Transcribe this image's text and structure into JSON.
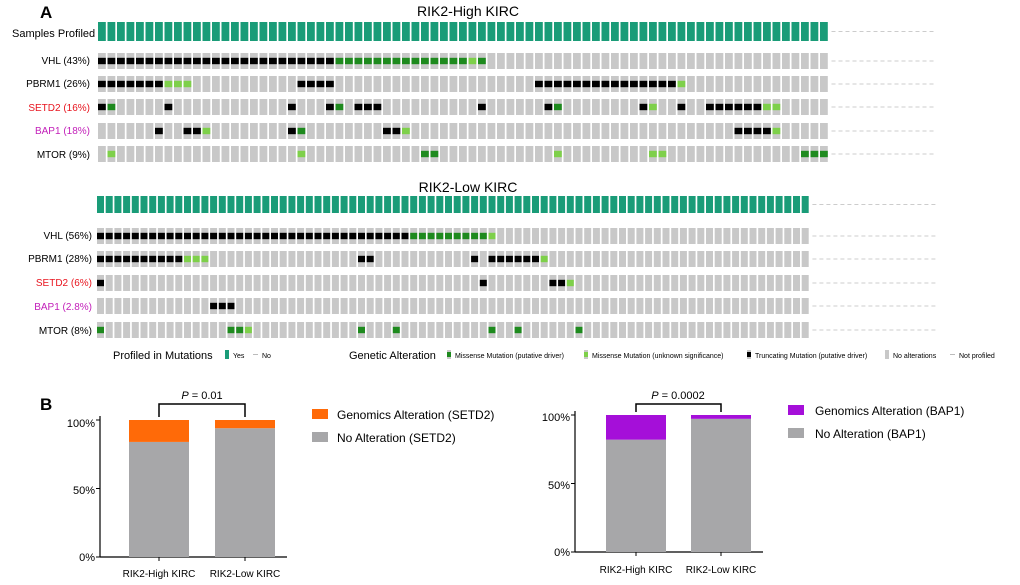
{
  "panel_a_label": "A",
  "panel_b_label": "B",
  "colors": {
    "profiled": "#1a9c78",
    "missense_driver": "#1e8a1e",
    "missense_unknown": "#7ed04a",
    "truncating": "#000000",
    "no_alteration": "#c8c8c8",
    "not_profiled": "#bbbbbb",
    "setd2_label": "#e8141e",
    "bap1_label": "#c21fb9",
    "setd2_alteration": "#ff6a08",
    "bap1_alteration": "#a50fd9",
    "no_alteration_bar": "#a7a7a9"
  },
  "oncoprint": {
    "high": {
      "title": "RIK2-High KIRC",
      "samples_profiled_label": "Samples Profiled",
      "n_samples": 77,
      "genes": [
        {
          "label": "VHL (43%)",
          "color": "#000000",
          "runs": [
            [
              0,
              24,
              "T"
            ],
            [
              25,
              38,
              "D"
            ],
            [
              39,
              39,
              "U"
            ],
            [
              40,
              40,
              "D"
            ]
          ]
        },
        {
          "label": "PBRM1 (26%)",
          "color": "#000000",
          "runs": [
            [
              0,
              6,
              "T"
            ],
            [
              7,
              9,
              "U"
            ],
            [
              21,
              24,
              "T"
            ],
            [
              46,
              60,
              "T"
            ],
            [
              61,
              61,
              "U"
            ]
          ]
        },
        {
          "label": "SETD2 (16%)",
          "color": "#e8141e",
          "runs": [
            [
              0,
              0,
              "T"
            ],
            [
              1,
              1,
              "D"
            ],
            [
              7,
              7,
              "T"
            ],
            [
              20,
              20,
              "T"
            ],
            [
              24,
              24,
              "T"
            ],
            [
              25,
              25,
              "D"
            ],
            [
              27,
              29,
              "T"
            ],
            [
              40,
              40,
              "T"
            ],
            [
              47,
              47,
              "T"
            ],
            [
              48,
              48,
              "D"
            ],
            [
              57,
              57,
              "T"
            ],
            [
              58,
              58,
              "U"
            ],
            [
              61,
              61,
              "T"
            ],
            [
              64,
              69,
              "T"
            ],
            [
              70,
              71,
              "U"
            ]
          ]
        },
        {
          "label": "BAP1 (18%)",
          "color": "#c21fb9",
          "runs": [
            [
              6,
              6,
              "T"
            ],
            [
              9,
              10,
              "T"
            ],
            [
              11,
              11,
              "U"
            ],
            [
              20,
              20,
              "T"
            ],
            [
              21,
              21,
              "D"
            ],
            [
              30,
              31,
              "T"
            ],
            [
              32,
              32,
              "U"
            ],
            [
              67,
              70,
              "T"
            ],
            [
              71,
              71,
              "U"
            ]
          ]
        },
        {
          "label": "MTOR (9%)",
          "color": "#000000",
          "runs": [
            [
              1,
              1,
              "U"
            ],
            [
              21,
              21,
              "U"
            ],
            [
              34,
              35,
              "D"
            ],
            [
              48,
              48,
              "U"
            ],
            [
              58,
              59,
              "U"
            ],
            [
              74,
              76,
              "D"
            ]
          ]
        }
      ]
    },
    "low": {
      "title": "RIK2-Low KIRC",
      "n_samples": 82,
      "genes": [
        {
          "label": "VHL (56%)",
          "color": "#000000",
          "runs": [
            [
              0,
              35,
              "T"
            ],
            [
              36,
              44,
              "D"
            ],
            [
              45,
              45,
              "U"
            ]
          ]
        },
        {
          "label": "PBRM1 (28%)",
          "color": "#000000",
          "runs": [
            [
              0,
              9,
              "T"
            ],
            [
              10,
              12,
              "U"
            ],
            [
              30,
              31,
              "T"
            ],
            [
              43,
              43,
              "T"
            ],
            [
              45,
              50,
              "T"
            ],
            [
              51,
              51,
              "U"
            ]
          ]
        },
        {
          "label": "SETD2 (6%)",
          "color": "#e8141e",
          "runs": [
            [
              0,
              0,
              "T"
            ],
            [
              44,
              44,
              "T"
            ],
            [
              52,
              53,
              "T"
            ],
            [
              54,
              54,
              "U"
            ]
          ]
        },
        {
          "label": "BAP1 (2.8%)",
          "color": "#c21fb9",
          "runs": [
            [
              13,
              15,
              "T"
            ]
          ]
        },
        {
          "label": "MTOR (8%)",
          "color": "#000000",
          "runs": [
            [
              0,
              0,
              "D"
            ],
            [
              15,
              16,
              "D"
            ],
            [
              17,
              17,
              "U"
            ],
            [
              30,
              30,
              "D"
            ],
            [
              34,
              34,
              "D"
            ],
            [
              45,
              45,
              "D"
            ],
            [
              48,
              48,
              "D"
            ],
            [
              55,
              55,
              "D"
            ]
          ]
        }
      ]
    },
    "legend": {
      "profiled_title": "Profiled in Mutations",
      "yes": "Yes",
      "no": "No",
      "genetic_title": "Genetic Alteration",
      "items": [
        {
          "key": "D",
          "label": "Missense Mutation (putative driver)"
        },
        {
          "key": "U",
          "label": "Missense Mutation (unknown significance)"
        },
        {
          "key": "T",
          "label": "Truncating Mutation (putative driver)"
        },
        {
          "key": "N",
          "label": "No alterations"
        },
        {
          "key": "P",
          "label": "Not profiled"
        }
      ]
    }
  },
  "chart_data": [
    {
      "type": "bar",
      "stacked": true,
      "categories": [
        "RIK2-High KIRC",
        "RIK2-Low KIRC"
      ],
      "series": [
        {
          "name": "No Alteration (SETD2)",
          "values": [
            84,
            94
          ],
          "color": "#a7a7a9"
        },
        {
          "name": "Genomics Alteration (SETD2)",
          "values": [
            16,
            6
          ],
          "color": "#ff6a08"
        }
      ],
      "yticks": [
        "0%",
        "50%",
        "100%"
      ],
      "ylim": [
        0,
        100
      ],
      "p_prefix": "P",
      "p_suffix": " = 0.01",
      "legend_position": "right"
    },
    {
      "type": "bar",
      "stacked": true,
      "categories": [
        "RIK2-High KIRC",
        "RIK2-Low KIRC"
      ],
      "series": [
        {
          "name": "No Alteration (BAP1)",
          "values": [
            82,
            97.2
          ],
          "color": "#a7a7a9"
        },
        {
          "name": "Genomics Alteration (BAP1)",
          "values": [
            18,
            2.8
          ],
          "color": "#a50fd9"
        }
      ],
      "yticks": [
        "0%",
        "50%",
        "100%"
      ],
      "ylim": [
        0,
        100
      ],
      "p_prefix": "P",
      "p_suffix": " = 0.0002",
      "legend_position": "right"
    }
  ]
}
